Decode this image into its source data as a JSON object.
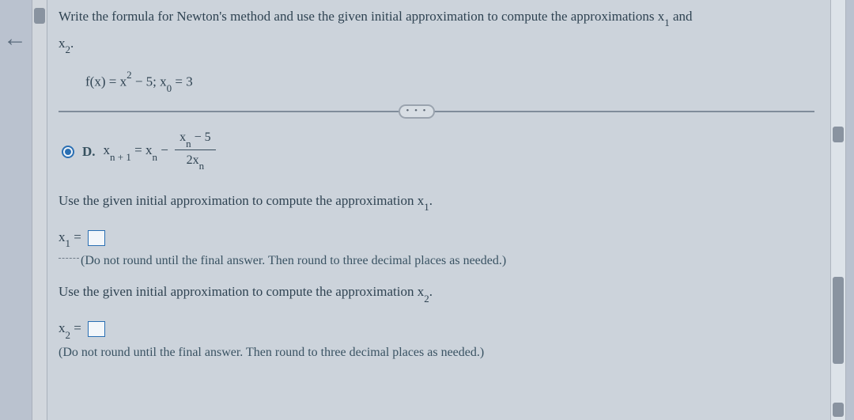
{
  "colors": {
    "page_bg": "#bac2cf",
    "panel_bg": "#ccd3db",
    "text": "#2f4352",
    "accent": "#2a6fb3",
    "rule": "#7f8c9a"
  },
  "back_arrow": "←",
  "intro": {
    "part1": "Write the formula for Newton's method and use the given initial approximation to compute the approximations x",
    "sub1": "1",
    "part2": " and",
    "line2_pre": "x",
    "line2_sub": "2",
    "line2_post": "."
  },
  "func": {
    "pre": "f(x) = x",
    "exp": "2",
    "mid": " − 5; x",
    "sub": "0",
    "post": " = 3"
  },
  "ellipsis": "• • •",
  "choice": {
    "letter": "D.",
    "lhs_pre": "x",
    "lhs_sub": "n + 1",
    "lhs_mid": " = x",
    "lhs_sub2": "n",
    "lhs_post": " − ",
    "num_pre": "x",
    "num_sub": "n",
    "num_post": " − 5",
    "den_pre": "2x",
    "den_sub": "n"
  },
  "prompt1": {
    "pre": "Use the given initial approximation to compute the approximation x",
    "sub": "1",
    "post": "."
  },
  "answer1": {
    "pre": "x",
    "sub": "1",
    "eq": " = "
  },
  "hint1": "(Do not round until the final answer. Then round to three decimal places as needed.)",
  "prompt2": {
    "pre": "Use the given initial approximation to compute the approximation x",
    "sub": "2",
    "post": "."
  },
  "answer2": {
    "pre": "x",
    "sub": "2",
    "eq": " = "
  },
  "hint2": "(Do not round until the final answer. Then round to three decimal places as needed.)"
}
